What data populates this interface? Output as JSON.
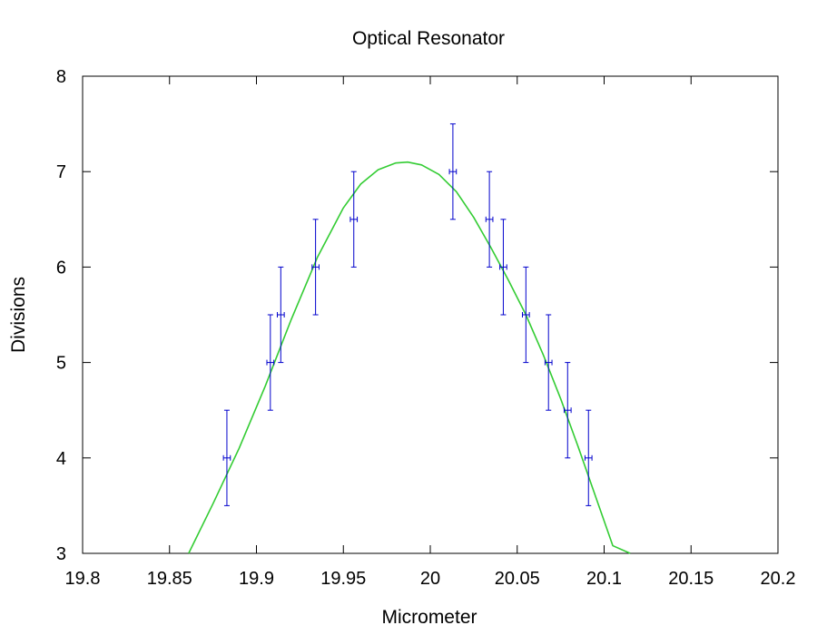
{
  "chart_data": {
    "type": "scatter",
    "title": "Optical Resonator",
    "xlabel": "Micrometer",
    "ylabel": "Divisions",
    "xlim": [
      19.8,
      20.2
    ],
    "ylim": [
      3,
      8
    ],
    "xticks": [
      19.8,
      19.85,
      19.9,
      19.95,
      20,
      20.05,
      20.1,
      20.15,
      20.2
    ],
    "xtick_labels": [
      "19.8",
      "19.85",
      "19.9",
      "19.95",
      "20",
      "20.05",
      "20.1",
      "20.15",
      "20.2"
    ],
    "yticks": [
      3,
      4,
      5,
      6,
      7,
      8
    ],
    "ytick_labels": [
      "3",
      "4",
      "5",
      "6",
      "7",
      "8"
    ],
    "grid": false,
    "legend": "none",
    "series": [
      {
        "kind": "errorbar",
        "color": "#0000cc",
        "x": [
          19.883,
          19.908,
          19.914,
          19.934,
          19.956,
          20.013,
          20.034,
          20.042,
          20.055,
          20.068,
          20.079,
          20.091
        ],
        "y": [
          4.0,
          5.0,
          5.5,
          6.0,
          6.5,
          7.0,
          6.5,
          6.0,
          5.5,
          5.0,
          4.5,
          4.0
        ],
        "yerr": [
          0.5,
          0.5,
          0.5,
          0.5,
          0.5,
          0.5,
          0.5,
          0.5,
          0.5,
          0.5,
          0.5,
          0.5
        ],
        "xerr": [
          0.002,
          0.002,
          0.002,
          0.002,
          0.002,
          0.002,
          0.002,
          0.002,
          0.002,
          0.002,
          0.002,
          0.002
        ]
      },
      {
        "kind": "fit-curve",
        "color": "#33cc33",
        "x": [
          19.861,
          19.875,
          19.89,
          19.905,
          19.92,
          19.935,
          19.95,
          19.96,
          19.97,
          19.98,
          19.987,
          19.995,
          20.005,
          20.015,
          20.025,
          20.035,
          20.045,
          20.055,
          20.065,
          20.075,
          20.085,
          20.095,
          20.105,
          20.115
        ],
        "y": [
          3.0,
          3.52,
          4.1,
          4.75,
          5.45,
          6.1,
          6.62,
          6.87,
          7.02,
          7.09,
          7.1,
          7.07,
          6.97,
          6.79,
          6.52,
          6.2,
          5.86,
          5.5,
          5.08,
          4.62,
          4.12,
          3.6,
          3.08,
          2.98
        ]
      }
    ]
  }
}
